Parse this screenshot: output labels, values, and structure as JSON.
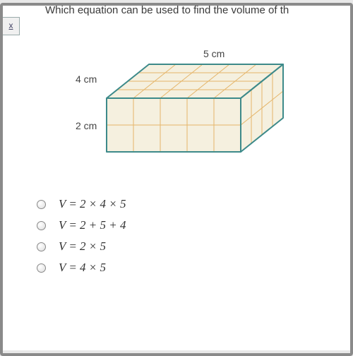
{
  "question_text": "Which equation can be used to find the volume of th",
  "tool_label": "x",
  "figure": {
    "type": "isometric-rect-prism",
    "width_cm": 5,
    "depth_cm": 4,
    "height_cm": 2,
    "labels": {
      "top": "5 cm",
      "left_top": "4 cm",
      "left_front": "2 cm"
    },
    "colors": {
      "top_fill": "#f5f0df",
      "front_fill": "#f5f0df",
      "side_fill": "#f5f0df",
      "grid_stroke": "#e5b56a",
      "outline_stroke": "#3d8a8a",
      "outline_width": 2,
      "grid_width": 1
    },
    "grid": {
      "top_cols": 5,
      "top_rows": 4,
      "front_cols": 5,
      "front_rows": 2,
      "side_cols": 4,
      "side_rows": 2
    }
  },
  "options": [
    {
      "formula": "V = 2 × 4 × 5"
    },
    {
      "formula": "V = 2 + 5 + 4"
    },
    {
      "formula": "V = 2 × 5"
    },
    {
      "formula": "V = 4 × 5"
    }
  ],
  "colors": {
    "page_bg": "#ffffff",
    "outer_bg": "#e8e8e8",
    "text": "#333333"
  }
}
